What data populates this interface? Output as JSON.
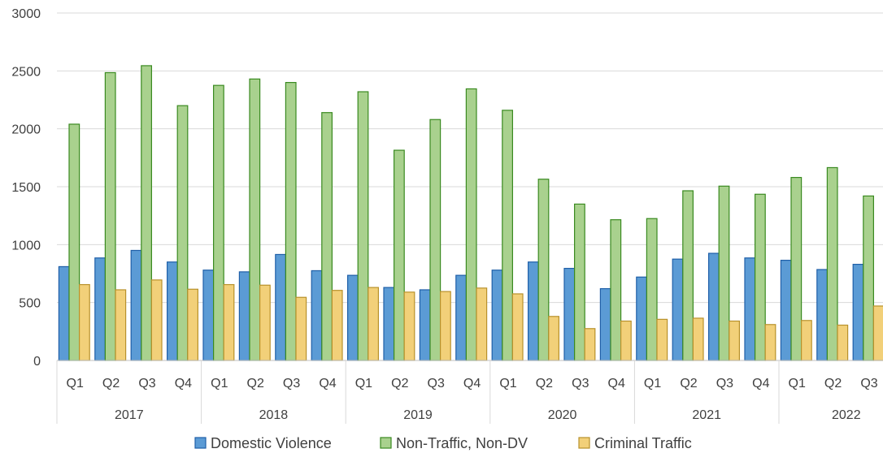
{
  "chart_data": {
    "type": "bar",
    "title": "",
    "xlabel": "",
    "ylabel": "",
    "ylim": [
      0,
      3000
    ],
    "yticks": [
      0,
      500,
      1000,
      1500,
      2000,
      2500,
      3000
    ],
    "grid": true,
    "legend_position": "bottom",
    "quarters": [
      "Q1",
      "Q2",
      "Q3",
      "Q4",
      "Q1",
      "Q2",
      "Q3",
      "Q4",
      "Q1",
      "Q2",
      "Q3",
      "Q4",
      "Q1",
      "Q2",
      "Q3",
      "Q4",
      "Q1",
      "Q2",
      "Q3",
      "Q4",
      "Q1",
      "Q2",
      "Q3"
    ],
    "years": [
      {
        "label": "2017",
        "count": 4
      },
      {
        "label": "2018",
        "count": 4
      },
      {
        "label": "2019",
        "count": 4
      },
      {
        "label": "2020",
        "count": 4
      },
      {
        "label": "2021",
        "count": 4
      },
      {
        "label": "2022",
        "count": 3
      }
    ],
    "series": [
      {
        "name": "Domestic Violence",
        "color": "#5B9BD5",
        "stroke": "#1F5FA8",
        "values": [
          810,
          885,
          950,
          850,
          780,
          765,
          915,
          775,
          735,
          630,
          610,
          735,
          780,
          850,
          795,
          620,
          720,
          875,
          925,
          885,
          865,
          785,
          830
        ]
      },
      {
        "name": "Non-Traffic, Non-DV",
        "color": "#A9D18E",
        "stroke": "#3A8A20",
        "values": [
          2040,
          2485,
          2545,
          2200,
          2375,
          2430,
          2400,
          2140,
          2320,
          1815,
          2080,
          2345,
          2160,
          1565,
          1350,
          1215,
          1225,
          1465,
          1505,
          1435,
          1580,
          1665,
          1420
        ]
      },
      {
        "name": "Criminal Traffic",
        "color": "#F2D079",
        "stroke": "#B8912B",
        "values": [
          655,
          610,
          695,
          615,
          655,
          650,
          545,
          605,
          630,
          590,
          595,
          625,
          575,
          380,
          275,
          340,
          355,
          365,
          340,
          310,
          345,
          305,
          470
        ]
      }
    ]
  }
}
